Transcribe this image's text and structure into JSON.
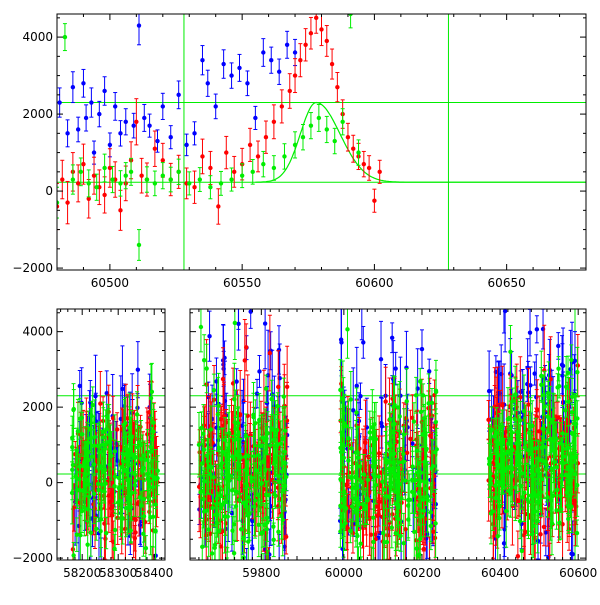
{
  "colors": {
    "series_blue": "#0000ff",
    "series_red": "#ff0000",
    "series_green": "#00ee00",
    "guide_lines": "#00ee00",
    "frame": "#000000",
    "model_curve": "#00ee00"
  },
  "chart_data": [
    {
      "type": "scatter",
      "panel": "top",
      "title": "",
      "xlabel": "",
      "ylabel": "",
      "xlim": [
        60480,
        60680
      ],
      "ylim": [
        -2050,
        4600
      ],
      "x_ticks": [
        60500,
        60550,
        60600,
        60650
      ],
      "y_ticks": [
        -2000,
        0,
        2000,
        4000
      ],
      "x_tick_labels": [
        "60500",
        "60550",
        "60600",
        "60650"
      ],
      "y_tick_labels": [
        "−2000",
        "0",
        "2000",
        "4000"
      ],
      "error_bars": true,
      "hlines": [
        2300,
        230
      ],
      "vlines": [
        60528,
        60628
      ],
      "model_curve": {
        "type": "line",
        "peak_x": 60578,
        "peak_y": 2300,
        "baseline": 230,
        "x_start": 60555,
        "x_end": 60680
      },
      "series": [
        {
          "color": "blue",
          "x": [
            60481,
            60484,
            60486,
            60488,
            60490,
            60491,
            60493,
            60494,
            60496,
            60498,
            60500,
            60502,
            60504,
            60506,
            60509,
            60511,
            60513,
            60515,
            60518,
            60520,
            60523,
            60526,
            60529,
            60532,
            60535,
            60537,
            60540,
            60543,
            60546,
            60549,
            60552,
            60555,
            60558,
            60561,
            60564,
            60567,
            60570
          ],
          "y": [
            2300,
            1500,
            2700,
            1600,
            2800,
            1900,
            2300,
            1000,
            2000,
            2600,
            1200,
            2200,
            1500,
            1800,
            1700,
            4300,
            1900,
            1700,
            1300,
            2200,
            1400,
            2500,
            1200,
            1500,
            3400,
            2800,
            2200,
            3300,
            3000,
            3200,
            2800,
            1900,
            3600,
            3400,
            3100,
            3800,
            3600
          ],
          "err": [
            380,
            350,
            400,
            320,
            360,
            340,
            380,
            300,
            330,
            370,
            310,
            360,
            330,
            340,
            320,
            500,
            350,
            300,
            290,
            340,
            300,
            360,
            280,
            300,
            380,
            340,
            320,
            370,
            330,
            350,
            320,
            300,
            360,
            340,
            330,
            350,
            340
          ]
        },
        {
          "color": "red",
          "x": [
            60480,
            60482,
            60484,
            60486,
            60488,
            60490,
            60492,
            60494,
            60496,
            60498,
            60500,
            60502,
            60504,
            60506,
            60508,
            60510,
            60512,
            60514,
            60517,
            60520,
            60523,
            60526,
            60529,
            60532,
            60535,
            60538,
            60541,
            60544,
            60547,
            60550,
            60553,
            60556,
            60559,
            60562,
            60565,
            60568,
            60570,
            60572,
            60574,
            60576,
            60578,
            60580,
            60582,
            60584,
            60586,
            60588,
            60590,
            60592,
            60594,
            60596,
            60598,
            60600,
            60602
          ],
          "y": [
            -400,
            300,
            -300,
            500,
            200,
            700,
            -200,
            400,
            100,
            -100,
            600,
            300,
            -500,
            200,
            800,
            1800,
            400,
            300,
            1100,
            800,
            300,
            500,
            200,
            100,
            900,
            600,
            -400,
            1000,
            500,
            700,
            1200,
            900,
            1400,
            1800,
            2200,
            2600,
            3000,
            3400,
            3800,
            4100,
            4500,
            4200,
            3900,
            3300,
            2700,
            2000,
            1400,
            1100,
            900,
            700,
            600,
            -250,
            500
          ],
          "err": [
            600,
            500,
            550,
            500,
            480,
            520,
            500,
            480,
            450,
            470,
            500,
            460,
            520,
            450,
            480,
            600,
            450,
            430,
            460,
            440,
            420,
            430,
            400,
            420,
            450,
            430,
            460,
            420,
            400,
            410,
            430,
            400,
            420,
            440,
            430,
            450,
            440,
            430,
            420,
            410,
            400,
            420,
            400,
            390,
            380,
            370,
            360,
            350,
            340,
            330,
            320,
            300,
            300
          ]
        },
        {
          "color": "green",
          "x": [
            60480,
            60483,
            60486,
            60489,
            60492,
            60495,
            60498,
            60501,
            60504,
            60506,
            60508,
            60511,
            60514,
            60517,
            60520,
            60523,
            60526,
            60530,
            60534,
            60538,
            60542,
            60546,
            60550,
            60554,
            60558,
            60562,
            60566,
            60570,
            60573,
            60576,
            60579,
            60582,
            60585,
            60588,
            60591,
            60594
          ],
          "y": [
            -300,
            4000,
            300,
            500,
            200,
            100,
            600,
            300,
            200,
            400,
            500,
            -1400,
            300,
            200,
            400,
            300,
            500,
            200,
            300,
            100,
            200,
            300,
            400,
            500,
            700,
            600,
            900,
            1200,
            1400,
            1700,
            1900,
            1600,
            1300,
            1800,
            4600,
            1000
          ],
          "err": [
            400,
            350,
            380,
            360,
            350,
            340,
            360,
            340,
            330,
            340,
            350,
            400,
            330,
            320,
            340,
            320,
            330,
            300,
            310,
            300,
            310,
            300,
            310,
            320,
            330,
            320,
            330,
            340,
            330,
            340,
            350,
            340,
            330,
            340,
            360,
            330
          ]
        }
      ]
    },
    {
      "type": "scatter",
      "panel": "bottom",
      "title": "",
      "xlabel": "",
      "ylabel": "",
      "broken_axis": true,
      "segments": [
        {
          "xlim": [
            58130,
            58430
          ],
          "x_ticks": [
            58200,
            58300,
            58400
          ],
          "x_tick_labels": [
            "58200",
            "58300",
            "58400"
          ]
        },
        {
          "xlim": [
            59640,
            59880
          ],
          "x_ticks": [
            59800
          ],
          "x_tick_labels": [
            "59800"
          ]
        },
        {
          "xlim": [
            59880,
            60620
          ],
          "x_ticks": [
            60000,
            60200,
            60400,
            60600
          ],
          "x_tick_labels": [
            "60000",
            "60200",
            "60400",
            "60600"
          ]
        }
      ],
      "ylim": [
        -2050,
        4600
      ],
      "y_ticks": [
        -2000,
        0,
        2000,
        4000
      ],
      "y_tick_labels": [
        "−2000",
        "0",
        "2000",
        "4000"
      ],
      "error_bars": true,
      "hlines": [
        2300,
        230
      ],
      "data_clusters": [
        {
          "x_range": [
            58170,
            58410
          ],
          "y_center": 200,
          "y_spread": 2200,
          "n": 120
        },
        {
          "x_range": [
            59660,
            59860
          ],
          "y_center": 300,
          "y_spread": 2800,
          "n": 130
        },
        {
          "x_range": [
            59990,
            60240
          ],
          "y_center": 200,
          "y_spread": 2700,
          "n": 140
        },
        {
          "x_range": [
            60370,
            60600
          ],
          "y_center": 500,
          "y_spread": 2600,
          "n": 150
        }
      ],
      "series": [
        {
          "color": "blue"
        },
        {
          "color": "red"
        },
        {
          "color": "green"
        }
      ]
    }
  ]
}
